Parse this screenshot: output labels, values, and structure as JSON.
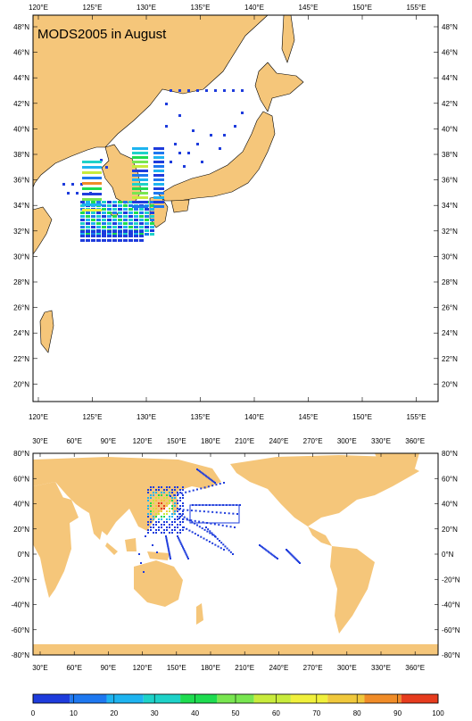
{
  "title": "MODS2005 in August",
  "regional_map": {
    "lon_labels": [
      "120°E",
      "125°E",
      "130°E",
      "135°E",
      "140°E",
      "145°E",
      "150°E",
      "155°E"
    ],
    "lat_labels": [
      "48°N",
      "46°N",
      "44°N",
      "42°N",
      "40°N",
      "38°N",
      "36°N",
      "34°N",
      "32°N",
      "30°N",
      "28°N",
      "26°N",
      "24°N",
      "22°N",
      "20°N"
    ]
  },
  "global_map": {
    "lon_labels": [
      "30°E",
      "60°E",
      "90°E",
      "120°E",
      "150°E",
      "180°E",
      "210°E",
      "240°E",
      "270°E",
      "300°E",
      "330°E",
      "360°E"
    ],
    "lat_labels": [
      "80°N",
      "60°N",
      "40°N",
      "20°N",
      "0°N",
      "-20°N",
      "-40°N",
      "-60°N",
      "-80°N"
    ]
  },
  "colorbar": {
    "labels": [
      "0",
      "10",
      "20",
      "30",
      "40",
      "50",
      "60",
      "70",
      "80",
      "90",
      "100"
    ],
    "colors": [
      "#1e3cdc",
      "#1e78f0",
      "#1eb4f0",
      "#1ed2c8",
      "#1edc50",
      "#78e650",
      "#c8eb3c",
      "#f0f03c",
      "#f0c83c",
      "#f08c28",
      "#e63c1e"
    ]
  },
  "colors": {
    "land": "#f5c67a",
    "ocean": "#ffffff",
    "obs_main": "#1e3cdc"
  }
}
